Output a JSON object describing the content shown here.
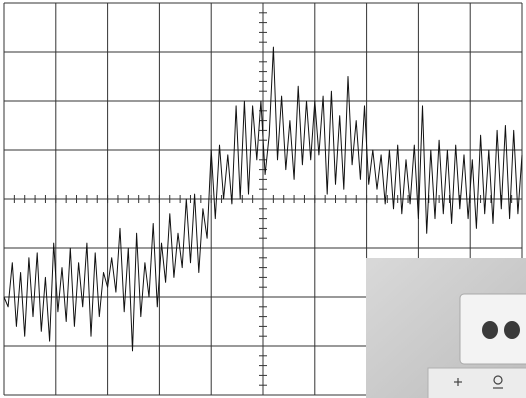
{
  "chart_data": {
    "type": "line",
    "title": "",
    "xlabel": "",
    "ylabel": "",
    "grid": true,
    "divisions": {
      "x": 10,
      "y": 8
    },
    "subdivisions_per_division": 5,
    "xlim": [
      -5,
      5
    ],
    "ylim": [
      -4,
      4
    ],
    "trace_color": "#111111",
    "grid_color": "#333333",
    "series": [
      {
        "x": [
          -5.0,
          -4.92,
          -4.84,
          -4.76,
          -4.68,
          -4.6,
          -4.52,
          -4.44,
          -4.36,
          -4.28,
          -4.2,
          -4.12,
          -4.04,
          -3.96,
          -3.88,
          -3.8,
          -3.72,
          -3.64,
          -3.56,
          -3.48,
          -3.4,
          -3.32,
          -3.24,
          -3.16,
          -3.08,
          -3.0,
          -2.92,
          -2.84,
          -2.76,
          -2.68,
          -2.6,
          -2.52,
          -2.44,
          -2.36,
          -2.28,
          -2.2,
          -2.12,
          -2.04,
          -1.96,
          -1.88,
          -1.8,
          -1.72,
          -1.64,
          -1.56,
          -1.48,
          -1.4,
          -1.32,
          -1.24,
          -1.16,
          -1.08,
          -1.0,
          -0.92,
          -0.84,
          -0.76,
          -0.68,
          -0.6,
          -0.52,
          -0.44,
          -0.36,
          -0.28,
          -0.2,
          -0.12,
          -0.04,
          0.04,
          0.12,
          0.2,
          0.28,
          0.36,
          0.44,
          0.52,
          0.6,
          0.68,
          0.76,
          0.84,
          0.92,
          1.0,
          1.08,
          1.16,
          1.24,
          1.32,
          1.4,
          1.48,
          1.56,
          1.64,
          1.72,
          1.8,
          1.88,
          1.96,
          2.04,
          2.12,
          2.2,
          2.28,
          2.36,
          2.44,
          2.52,
          2.6,
          2.68,
          2.76,
          2.84,
          2.92,
          3.0,
          3.08,
          3.16,
          3.24,
          3.32,
          3.4,
          3.48,
          3.56,
          3.64,
          3.72,
          3.8,
          3.88,
          3.96,
          4.04,
          4.12,
          4.2,
          4.28,
          4.36,
          4.44,
          4.52,
          4.6,
          4.68,
          4.76,
          4.84,
          4.92,
          5.0
        ],
        "values": [
          -2.0,
          -2.2,
          -1.3,
          -2.6,
          -1.5,
          -2.8,
          -1.2,
          -2.4,
          -1.1,
          -2.7,
          -1.6,
          -2.9,
          -0.9,
          -2.3,
          -1.4,
          -2.5,
          -1.0,
          -2.6,
          -1.3,
          -2.2,
          -0.9,
          -2.8,
          -1.1,
          -2.4,
          -1.5,
          -1.8,
          -1.2,
          -1.9,
          -0.6,
          -2.3,
          -1.0,
          -3.1,
          -0.7,
          -2.4,
          -1.3,
          -2.0,
          -0.5,
          -2.2,
          -0.9,
          -1.7,
          -0.3,
          -1.6,
          -0.7,
          -1.4,
          0.0,
          -1.3,
          0.1,
          -1.5,
          -0.2,
          -0.8,
          1.0,
          -0.4,
          1.1,
          0.0,
          0.9,
          -0.1,
          1.9,
          0.0,
          2.0,
          0.1,
          1.9,
          0.8,
          2.0,
          0.5,
          1.3,
          3.1,
          0.8,
          2.1,
          0.6,
          1.6,
          0.4,
          2.3,
          0.7,
          2.0,
          0.8,
          2.0,
          0.9,
          2.1,
          0.1,
          2.2,
          0.3,
          1.7,
          0.2,
          2.5,
          0.7,
          1.6,
          0.4,
          1.9,
          0.3,
          1.0,
          0.2,
          0.9,
          -0.1,
          1.0,
          -0.2,
          1.1,
          -0.3,
          0.8,
          -0.1,
          1.1,
          -0.4,
          1.9,
          -0.7,
          1.0,
          -0.4,
          1.2,
          -0.3,
          1.0,
          -0.5,
          1.1,
          -0.2,
          0.9,
          -0.4,
          0.8,
          -0.6,
          1.3,
          -0.3,
          1.0,
          -0.5,
          1.4,
          -0.2,
          1.5,
          -0.4,
          1.4,
          -0.3,
          0.9
        ]
      }
    ]
  }
}
